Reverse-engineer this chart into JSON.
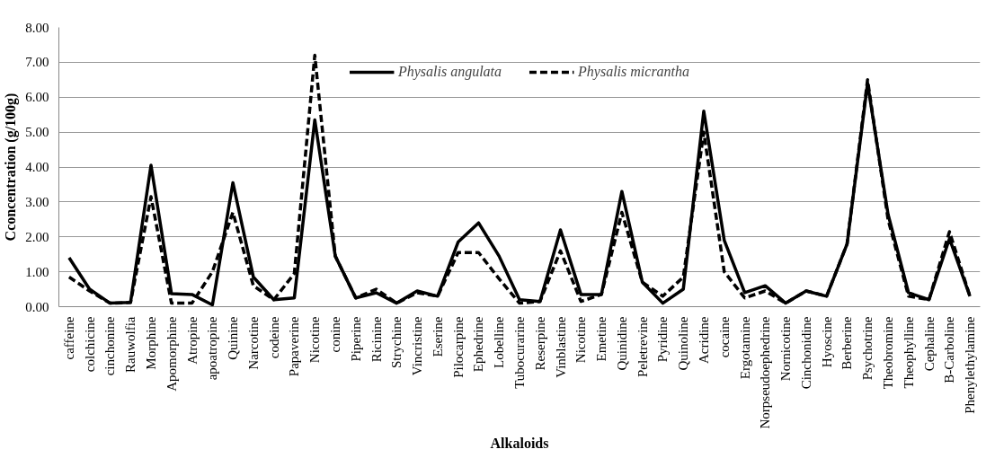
{
  "chart_data": {
    "type": "line",
    "xlabel": "Alkaloids",
    "ylabel": "Cconcentration (g/100g)",
    "categories": [
      "caffeine",
      "colchicine",
      "cinchonine",
      "Rauwolfia",
      "Morphine",
      "Apomorphine",
      "Atropine",
      "apoatropine",
      "Quinine",
      "Narcotine",
      "codeine",
      "Papaverine",
      "Nicotine",
      "conine",
      "Piperine",
      "Ricinine",
      "Strychine",
      "Vincristine",
      "Eserine",
      "Pilocarpine",
      "Ephedrine",
      "Lobelline",
      "Tubocurarine",
      "Reserpine",
      "Vinblastine",
      "Nicotine",
      "Emetine",
      "Quinidine",
      "Peletrevine",
      "Pyridine",
      "Quinoline",
      "Acridine",
      "cocaine",
      "Ergotamine",
      "Norpseudoephedrine",
      "Nornicotine",
      "Cinchonidine",
      "Hyoscine",
      "Berberine",
      "Psychotrine",
      "Theobromine",
      "Theophylline",
      "Cephaline",
      "B-Carboline",
      "Phenylethylamine"
    ],
    "series": [
      {
        "name": "Physalis angulata",
        "color": "#000000",
        "line_style": "solid",
        "values": [
          1.4,
          0.5,
          0.1,
          0.12,
          4.05,
          0.37,
          0.35,
          0.05,
          3.55,
          0.85,
          0.2,
          0.25,
          5.35,
          1.45,
          0.25,
          0.4,
          0.1,
          0.45,
          0.3,
          1.85,
          2.4,
          1.45,
          0.2,
          0.15,
          2.2,
          0.35,
          0.35,
          3.3,
          0.7,
          0.1,
          0.5,
          5.6,
          1.9,
          0.4,
          0.6,
          0.1,
          0.45,
          0.3,
          1.8,
          6.4,
          2.65,
          0.4,
          0.2,
          1.95,
          0.3
        ]
      },
      {
        "name": "Physalis micrantha",
        "color": "#000000",
        "line_style": "dashed",
        "values": [
          0.85,
          0.45,
          0.1,
          0.12,
          3.15,
          0.1,
          0.1,
          1.0,
          2.7,
          0.6,
          0.2,
          0.95,
          7.2,
          1.45,
          0.25,
          0.5,
          0.1,
          0.4,
          0.3,
          1.55,
          1.55,
          0.8,
          0.1,
          0.15,
          1.6,
          0.15,
          0.35,
          2.7,
          0.7,
          0.3,
          0.85,
          5.0,
          1.0,
          0.25,
          0.45,
          0.1,
          0.45,
          0.3,
          1.8,
          6.5,
          2.5,
          0.3,
          0.2,
          2.15,
          0.3
        ]
      }
    ],
    "ylim": [
      0,
      8
    ],
    "yticks": [
      {
        "value": 0,
        "label": "0.00"
      },
      {
        "value": 1,
        "label": "1.00"
      },
      {
        "value": 2,
        "label": "2.00"
      },
      {
        "value": 3,
        "label": "3.00"
      },
      {
        "value": 4,
        "label": "4.00"
      },
      {
        "value": 5,
        "label": "5.00"
      },
      {
        "value": 6,
        "label": "6.00"
      },
      {
        "value": 7,
        "label": "7.00"
      },
      {
        "value": 8,
        "label": "8.00"
      }
    ],
    "grid": "y",
    "legend": "top",
    "marker": "none"
  }
}
